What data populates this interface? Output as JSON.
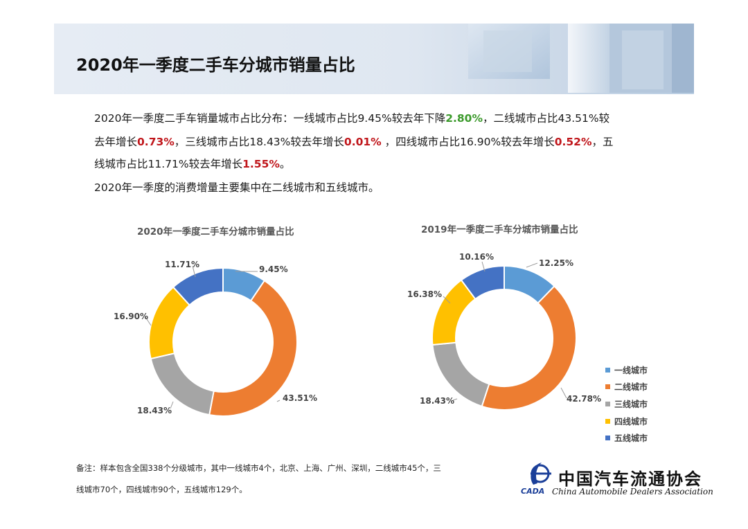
{
  "header": {
    "title": "2020年一季度二手车分城市销量占比"
  },
  "summary": {
    "line1_pre": "2020年一季度二手车销量城市占比分布：一线城市占比9.45%较去年下降",
    "line1_tier1_change": "2.80%",
    "line1_post": "，二线城市占比43.51%较",
    "line2_pre": "去年增长",
    "line2_tier2_change": "0.73%",
    "line2_mid1": "，三线城市占比18.43%较去年增长",
    "line2_tier3_change": "0.01%",
    "line2_mid2": " ，四线城市占比16.90%较去年增长",
    "line2_tier4_change": "0.52%",
    "line2_post": "，五",
    "line3_pre": "线城市占比11.71%较去年增长",
    "line3_tier5_change": "1.55%",
    "line3_post": "。",
    "line4": "2020年一季度的消费增量主要集中在二线城市和五线城市。"
  },
  "chart_data": [
    {
      "type": "pie",
      "title": "2020年一季度二手车分城市销量占比",
      "categories": [
        "一线城市",
        "二线城市",
        "三线城市",
        "四线城市",
        "五线城市"
      ],
      "values": [
        9.45,
        43.51,
        18.43,
        16.9,
        11.71
      ],
      "labels": [
        "9.45%",
        "43.51%",
        "18.43%",
        "16.90%",
        "11.71%"
      ],
      "colors": [
        "#5b9bd5",
        "#ed7d31",
        "#a5a5a5",
        "#ffc000",
        "#4472c4"
      ]
    },
    {
      "type": "pie",
      "title": "2019年一季度二手车分城市销量占比",
      "categories": [
        "一线城市",
        "二线城市",
        "三线城市",
        "四线城市",
        "五线城市"
      ],
      "values": [
        12.25,
        42.78,
        18.43,
        16.38,
        10.16
      ],
      "labels": [
        "12.25%",
        "42.78%",
        "18.43%",
        "16.38%",
        "10.16%"
      ],
      "colors": [
        "#5b9bd5",
        "#ed7d31",
        "#a5a5a5",
        "#ffc000",
        "#4472c4"
      ]
    }
  ],
  "legend": {
    "items": [
      "一线城市",
      "二线城市",
      "三线城市",
      "四线城市",
      "五线城市"
    ],
    "colors": [
      "#5b9bd5",
      "#ed7d31",
      "#a5a5a5",
      "#ffc000",
      "#4472c4"
    ]
  },
  "note": {
    "line1": "备注：样本包含全国338个分级城市，其中一线城市4个，北京、上海、广州、深圳，二线城市45个，三",
    "line2": "线城市70个，四线城市90个，五线城市129个。"
  },
  "logo": {
    "name_cn": "中国汽车流通协会",
    "name_en": "China Automobile Dealers Association",
    "abbr": "CADA"
  }
}
